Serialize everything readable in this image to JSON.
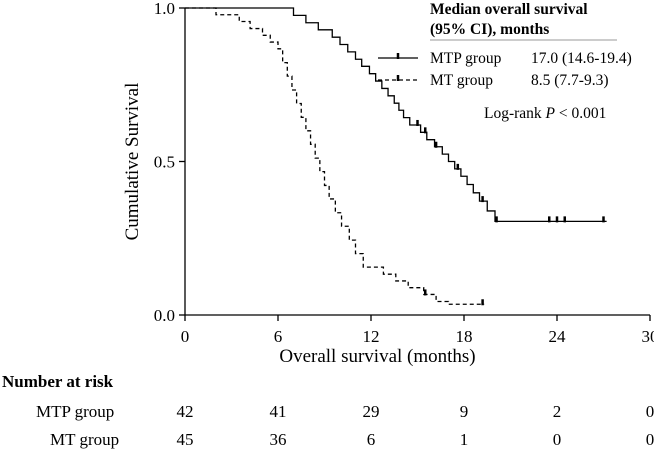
{
  "chart_data": {
    "type": "line",
    "subtype": "kaplan-meier",
    "xlabel": "Overall survival (months)",
    "ylabel": "Cumulative Survival",
    "xlim": [
      0,
      30
    ],
    "ylim": [
      0,
      1.0
    ],
    "xticks": [
      "0",
      "6",
      "12",
      "18",
      "24",
      "30"
    ],
    "yticks": [
      "0.0",
      "0.5",
      "1.0"
    ],
    "legend": {
      "title": "Median overall survival (95% CI), months",
      "title_line1": "Median overall survival",
      "title_line2": "(95% CI), months",
      "entries": [
        {
          "name": "MTP group",
          "median": "17.0 (14.6-19.4)",
          "style": "solid"
        },
        {
          "name": "MT group",
          "median": "8.5 (7.7-9.3)",
          "style": "dashed"
        }
      ]
    },
    "annotation": {
      "prefix": "Log-rank ",
      "p": "P",
      "suffix": " < 0.001"
    },
    "series": [
      {
        "name": "MTP group",
        "style": "solid",
        "steps": [
          [
            0,
            1.0
          ],
          [
            7.0,
            0.976
          ],
          [
            7.8,
            0.952
          ],
          [
            8.6,
            0.929
          ],
          [
            9.5,
            0.905
          ],
          [
            10.0,
            0.881
          ],
          [
            10.5,
            0.857
          ],
          [
            11.0,
            0.833
          ],
          [
            11.4,
            0.81
          ],
          [
            11.9,
            0.786
          ],
          [
            12.3,
            0.762
          ],
          [
            12.7,
            0.738
          ],
          [
            13.1,
            0.714
          ],
          [
            13.5,
            0.69
          ],
          [
            13.8,
            0.667
          ],
          [
            14.1,
            0.643
          ],
          [
            14.5,
            0.619
          ],
          [
            15.2,
            0.595
          ],
          [
            15.6,
            0.571
          ],
          [
            16.1,
            0.548
          ],
          [
            16.6,
            0.524
          ],
          [
            17.0,
            0.5
          ],
          [
            17.4,
            0.476
          ],
          [
            17.8,
            0.452
          ],
          [
            18.2,
            0.425
          ],
          [
            18.6,
            0.398
          ],
          [
            19.0,
            0.371
          ],
          [
            19.5,
            0.339
          ],
          [
            20.0,
            0.305
          ]
        ],
        "end": 27.2,
        "censors": [
          [
            15.0,
            0.619
          ],
          [
            15.5,
            0.595
          ],
          [
            16.2,
            0.548
          ],
          [
            17.6,
            0.476
          ],
          [
            19.2,
            0.371
          ],
          [
            20.1,
            0.305
          ],
          [
            23.5,
            0.305
          ],
          [
            24.0,
            0.305
          ],
          [
            24.5,
            0.305
          ],
          [
            27.0,
            0.305
          ]
        ]
      },
      {
        "name": "MT group",
        "style": "dashed",
        "steps": [
          [
            0,
            1.0
          ],
          [
            2.0,
            0.978
          ],
          [
            3.5,
            0.956
          ],
          [
            4.2,
            0.933
          ],
          [
            5.0,
            0.911
          ],
          [
            5.5,
            0.889
          ],
          [
            6.0,
            0.867
          ],
          [
            6.3,
            0.822
          ],
          [
            6.6,
            0.778
          ],
          [
            6.9,
            0.733
          ],
          [
            7.2,
            0.689
          ],
          [
            7.5,
            0.644
          ],
          [
            7.8,
            0.6
          ],
          [
            8.1,
            0.556
          ],
          [
            8.4,
            0.511
          ],
          [
            8.7,
            0.467
          ],
          [
            9.0,
            0.422
          ],
          [
            9.3,
            0.378
          ],
          [
            9.7,
            0.333
          ],
          [
            10.1,
            0.289
          ],
          [
            10.6,
            0.244
          ],
          [
            11.0,
            0.2
          ],
          [
            11.5,
            0.156
          ],
          [
            12.8,
            0.133
          ],
          [
            13.6,
            0.111
          ],
          [
            14.4,
            0.089
          ],
          [
            15.4,
            0.067
          ],
          [
            16.2,
            0.044
          ],
          [
            17.0,
            0.035
          ]
        ],
        "end": 19.3,
        "censors": [
          [
            15.5,
            0.067
          ],
          [
            19.2,
            0.035
          ]
        ]
      }
    ]
  },
  "number_at_risk": {
    "title": "Number at risk",
    "groups": [
      {
        "label": "MTP group",
        "values": [
          "42",
          "41",
          "29",
          "9",
          "2",
          "0"
        ]
      },
      {
        "label": "MT group",
        "values": [
          "45",
          "36",
          "6",
          "1",
          "0",
          "0"
        ]
      }
    ]
  }
}
